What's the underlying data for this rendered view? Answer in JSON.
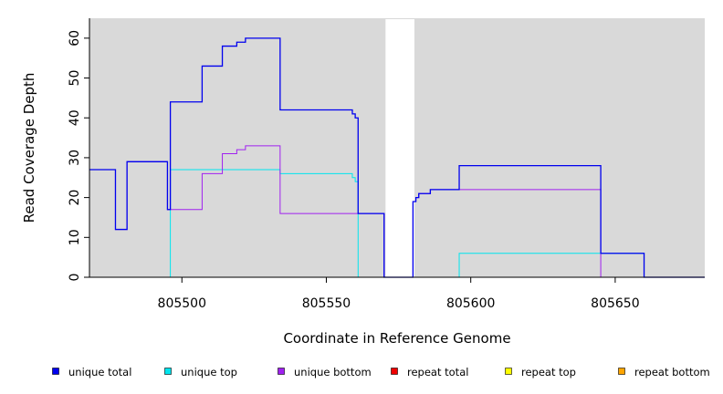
{
  "chart_data": {
    "type": "line",
    "step": true,
    "title": "",
    "xlabel": "Coordinate in Reference Genome",
    "ylabel": "Read Coverage Depth",
    "xlim": [
      805468,
      805681
    ],
    "ylim": [
      0,
      65
    ],
    "xticks": [
      805500,
      805550,
      805600,
      805650
    ],
    "yticks": [
      0,
      10,
      20,
      30,
      40,
      50,
      60
    ],
    "grid": false,
    "background_color": "#d9d9d9",
    "gap_region": [
      805570.5,
      805580.5
    ],
    "legend_position": "bottom",
    "series": [
      {
        "name": "unique total",
        "color": "#0000ee",
        "x": [
          805468,
          805477,
          805481,
          805495,
          805496,
          805507,
          805514,
          805519,
          805522,
          805534,
          805559,
          805560,
          805561,
          805570,
          805580,
          805581,
          805582,
          805586,
          805596,
          805645,
          805660,
          805681
        ],
        "y": [
          27,
          12,
          29,
          17,
          44,
          53,
          58,
          59,
          60,
          42,
          41,
          40,
          16,
          0,
          19,
          20,
          21,
          22,
          28,
          6,
          0,
          0
        ]
      },
      {
        "name": "unique top",
        "color": "#00e5ee",
        "x": [
          805468,
          805496,
          805534,
          805559,
          805560,
          805561,
          805596,
          805645,
          805660,
          805681
        ],
        "y": [
          0,
          27,
          26,
          25,
          24,
          0,
          6,
          6,
          0,
          0
        ]
      },
      {
        "name": "unique bottom",
        "color": "#a020f0",
        "x": [
          805468,
          805477,
          805481,
          805495,
          805507,
          805514,
          805519,
          805522,
          805534,
          805561,
          805570,
          805580,
          805581,
          805582,
          805586,
          805596,
          805645,
          805681
        ],
        "y": [
          27,
          12,
          29,
          17,
          26,
          31,
          32,
          33,
          16,
          16,
          0,
          19,
          20,
          21,
          22,
          22,
          0,
          0
        ]
      },
      {
        "name": "repeat total",
        "color": "#ee0000",
        "x": [
          805468,
          805681
        ],
        "y": [
          0,
          0
        ]
      },
      {
        "name": "repeat top",
        "color": "#ffff00",
        "x": [
          805468,
          805681
        ],
        "y": [
          0,
          0
        ]
      },
      {
        "name": "repeat bottom",
        "color": "#ffa500",
        "x": [
          805468,
          805681
        ],
        "y": [
          0,
          0
        ]
      }
    ]
  }
}
